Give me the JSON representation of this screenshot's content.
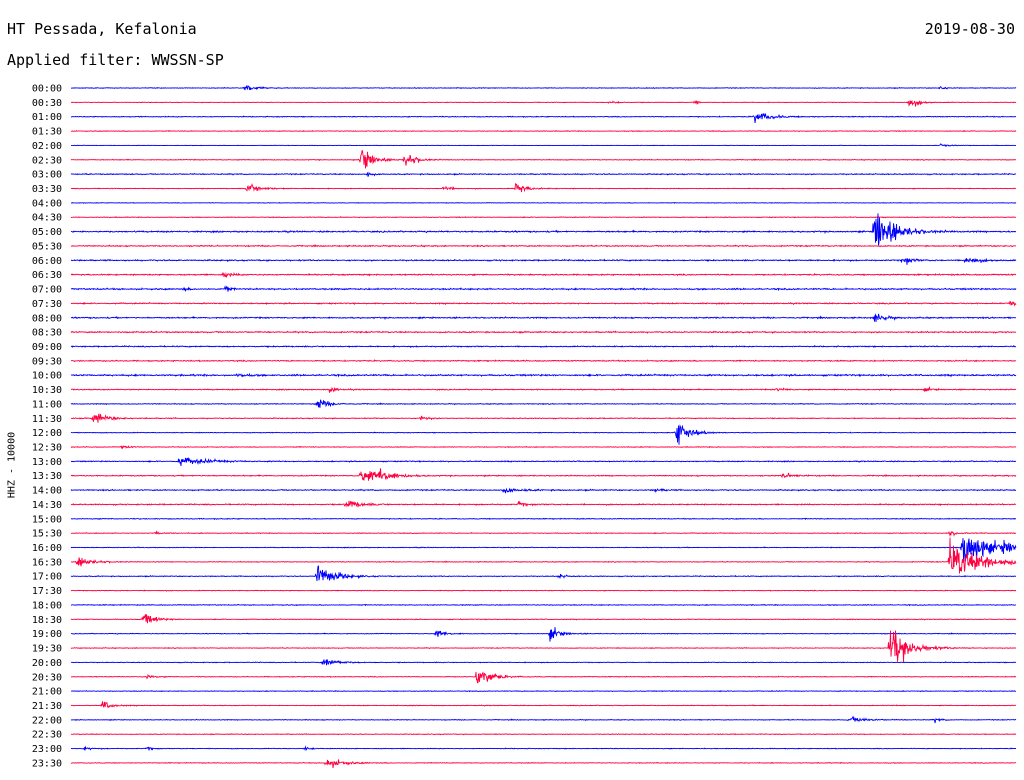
{
  "header": {
    "station": "HT Pessada, Kefalonia",
    "date": "2019-08-30",
    "filter": "Applied filter: WWSSN-SP",
    "channel": "HHZ - 10000"
  },
  "colors": {
    "trace_even": "#0000ff",
    "trace_odd": "#ff0040",
    "background": "#ffffff",
    "text": "#000000"
  },
  "chart_data": {
    "type": "line",
    "title": "HT Pessada, Kefalonia",
    "ylabel": "HHZ - 10000",
    "time_labels": [
      "00:00",
      "00:30",
      "01:00",
      "01:30",
      "02:00",
      "02:30",
      "03:00",
      "03:30",
      "04:00",
      "04:30",
      "05:00",
      "05:30",
      "06:00",
      "06:30",
      "07:00",
      "07:30",
      "08:00",
      "08:30",
      "09:00",
      "09:30",
      "10:00",
      "10:30",
      "11:00",
      "11:30",
      "12:00",
      "12:30",
      "13:00",
      "13:30",
      "14:00",
      "14:30",
      "15:00",
      "15:30",
      "16:00",
      "16:30",
      "17:00",
      "17:30",
      "18:00",
      "18:30",
      "19:00",
      "19:30",
      "20:00",
      "20:30",
      "21:00",
      "21:30",
      "22:00",
      "22:30",
      "23:00",
      "23:30"
    ],
    "row_minutes": 30,
    "color_scheme": "alternating",
    "noise_level": [
      1.0,
      0.8,
      1.2,
      1.0,
      0.6,
      1.0,
      1.5,
      1.0,
      0.8,
      1.0,
      2.0,
      1.6,
      1.8,
      1.8,
      2.0,
      1.6,
      1.8,
      1.8,
      1.6,
      1.6,
      2.2,
      1.4,
      1.2,
      1.2,
      1.0,
      1.0,
      1.4,
      1.4,
      1.6,
      1.6,
      1.2,
      1.0,
      1.0,
      1.0,
      1.2,
      1.0,
      1.2,
      1.0,
      1.0,
      1.0,
      1.0,
      1.0,
      1.0,
      1.0,
      1.0,
      1.0,
      1.0,
      1.0
    ],
    "events": [
      {
        "row": 0,
        "minute": 5.5,
        "amp": 6,
        "dur": 0.8
      },
      {
        "row": 0,
        "minute": 27.6,
        "amp": 3,
        "dur": 0.5
      },
      {
        "row": 1,
        "minute": 17.1,
        "amp": 3,
        "dur": 0.6
      },
      {
        "row": 1,
        "minute": 19.8,
        "amp": 6,
        "dur": 0.3
      },
      {
        "row": 1,
        "minute": 26.6,
        "amp": 9,
        "dur": 0.8
      },
      {
        "row": 2,
        "minute": 21.7,
        "amp": 10,
        "dur": 1.2
      },
      {
        "row": 4,
        "minute": 27.6,
        "amp": 3,
        "dur": 0.6
      },
      {
        "row": 5,
        "minute": 9.2,
        "amp": 28,
        "dur": 0.8
      },
      {
        "row": 5,
        "minute": 10.6,
        "amp": 14,
        "dur": 0.8
      },
      {
        "row": 6,
        "minute": 9.4,
        "amp": 7,
        "dur": 0.3
      },
      {
        "row": 7,
        "minute": 5.6,
        "amp": 9,
        "dur": 1.0
      },
      {
        "row": 7,
        "minute": 11.8,
        "amp": 5,
        "dur": 0.6
      },
      {
        "row": 7,
        "minute": 14.1,
        "amp": 10,
        "dur": 0.9
      },
      {
        "row": 10,
        "minute": 25.5,
        "amp": 42,
        "dur": 1.5
      },
      {
        "row": 12,
        "minute": 26.4,
        "amp": 9,
        "dur": 0.6
      },
      {
        "row": 12,
        "minute": 28.4,
        "amp": 8,
        "dur": 0.9
      },
      {
        "row": 13,
        "minute": 4.8,
        "amp": 6,
        "dur": 0.6
      },
      {
        "row": 14,
        "minute": 3.6,
        "amp": 5,
        "dur": 0.2
      },
      {
        "row": 14,
        "minute": 4.9,
        "amp": 15,
        "dur": 0.2
      },
      {
        "row": 15,
        "minute": 29.8,
        "amp": 6,
        "dur": 0.5
      },
      {
        "row": 16,
        "minute": 25.5,
        "amp": 8,
        "dur": 0.8
      },
      {
        "row": 20,
        "minute": 5.3,
        "amp": 4,
        "dur": 0.6
      },
      {
        "row": 21,
        "minute": 8.2,
        "amp": 5,
        "dur": 0.5
      },
      {
        "row": 21,
        "minute": 22.4,
        "amp": 4,
        "dur": 0.6
      },
      {
        "row": 21,
        "minute": 27.1,
        "amp": 3,
        "dur": 0.6
      },
      {
        "row": 22,
        "minute": 7.8,
        "amp": 12,
        "dur": 0.8
      },
      {
        "row": 23,
        "minute": 0.7,
        "amp": 11,
        "dur": 1.0
      },
      {
        "row": 23,
        "minute": 11.1,
        "amp": 6,
        "dur": 0.5
      },
      {
        "row": 24,
        "minute": 19.2,
        "amp": 24,
        "dur": 1.0
      },
      {
        "row": 25,
        "minute": 1.6,
        "amp": 3,
        "dur": 0.5
      },
      {
        "row": 26,
        "minute": 3.4,
        "amp": 8,
        "dur": 2.0
      },
      {
        "row": 27,
        "minute": 9.2,
        "amp": 14,
        "dur": 1.4
      },
      {
        "row": 27,
        "minute": 9.8,
        "amp": 11,
        "dur": 1.0
      },
      {
        "row": 27,
        "minute": 22.6,
        "amp": 5,
        "dur": 0.8
      },
      {
        "row": 28,
        "minute": 13.7,
        "amp": 4,
        "dur": 1.4
      },
      {
        "row": 28,
        "minute": 18.5,
        "amp": 4,
        "dur": 0.6
      },
      {
        "row": 29,
        "minute": 8.7,
        "amp": 10,
        "dur": 1.0
      },
      {
        "row": 29,
        "minute": 14.2,
        "amp": 4,
        "dur": 0.6
      },
      {
        "row": 31,
        "minute": 2.7,
        "amp": 3,
        "dur": 0.5
      },
      {
        "row": 31,
        "minute": 27.9,
        "amp": 5,
        "dur": 0.6
      },
      {
        "row": 32,
        "minute": 29.6,
        "amp": 8,
        "dur": 1.0
      },
      {
        "row": 32,
        "minute": 28.3,
        "amp": 40,
        "dur": 1.8
      },
      {
        "row": 33,
        "minute": 0.2,
        "amp": 8,
        "dur": 1.2
      },
      {
        "row": 33,
        "minute": 27.9,
        "amp": 35,
        "dur": 2.5
      },
      {
        "row": 34,
        "minute": 7.8,
        "amp": 22,
        "dur": 1.3
      },
      {
        "row": 34,
        "minute": 15.5,
        "amp": 5,
        "dur": 0.4
      },
      {
        "row": 37,
        "minute": 2.3,
        "amp": 11,
        "dur": 0.9
      },
      {
        "row": 38,
        "minute": 11.6,
        "amp": 6,
        "dur": 0.8
      },
      {
        "row": 38,
        "minute": 15.2,
        "amp": 12,
        "dur": 0.8
      },
      {
        "row": 39,
        "minute": 26.0,
        "amp": 40,
        "dur": 1.4
      },
      {
        "row": 40,
        "minute": 8.0,
        "amp": 9,
        "dur": 1.0
      },
      {
        "row": 41,
        "minute": 12.9,
        "amp": 22,
        "dur": 1.0
      },
      {
        "row": 41,
        "minute": 2.4,
        "amp": 4,
        "dur": 0.5
      },
      {
        "row": 43,
        "minute": 1.0,
        "amp": 8,
        "dur": 0.7
      },
      {
        "row": 44,
        "minute": 24.7,
        "amp": 5,
        "dur": 1.3
      },
      {
        "row": 44,
        "minute": 27.4,
        "amp": 4,
        "dur": 0.5
      },
      {
        "row": 46,
        "minute": 0.4,
        "amp": 3,
        "dur": 0.6
      },
      {
        "row": 46,
        "minute": 2.4,
        "amp": 4,
        "dur": 0.4
      },
      {
        "row": 46,
        "minute": 7.4,
        "amp": 3,
        "dur": 0.5
      },
      {
        "row": 47,
        "minute": 8.1,
        "amp": 10,
        "dur": 1.2
      }
    ]
  }
}
